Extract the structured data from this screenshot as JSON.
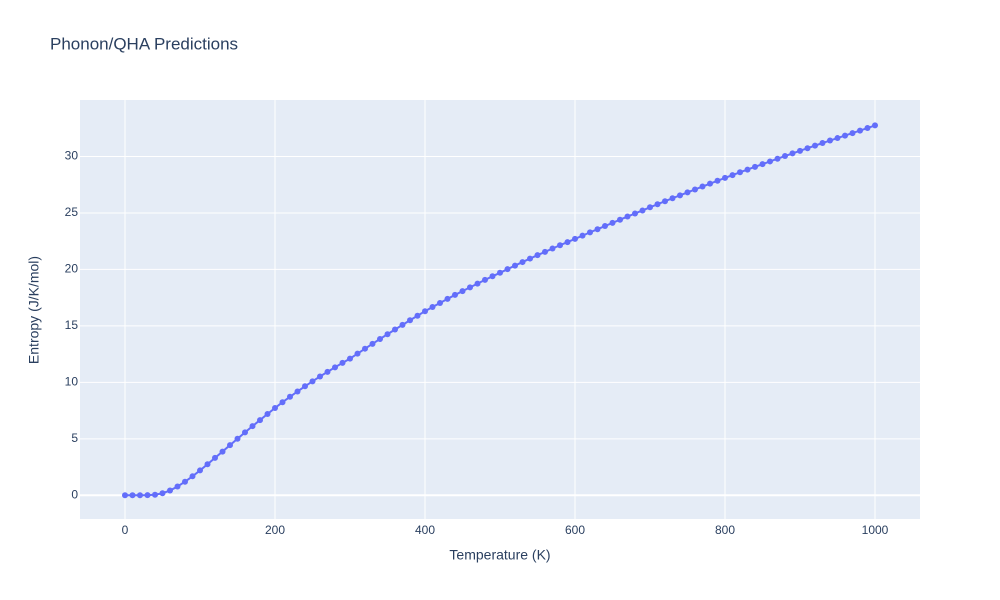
{
  "chart_data": {
    "type": "line",
    "title": "Phonon/QHA Predictions",
    "x_label": "Temperature (K)",
    "y_label": "Entropy (J/K/mol)",
    "x": [
      0,
      10,
      20,
      30,
      40,
      50,
      60,
      70,
      80,
      90,
      100,
      110,
      120,
      130,
      140,
      150,
      160,
      170,
      180,
      190,
      200,
      210,
      220,
      230,
      240,
      250,
      260,
      270,
      280,
      290,
      300,
      310,
      320,
      330,
      340,
      350,
      360,
      370,
      380,
      390,
      400,
      410,
      420,
      430,
      440,
      450,
      460,
      470,
      480,
      490,
      500,
      510,
      520,
      530,
      540,
      550,
      560,
      570,
      580,
      590,
      600,
      610,
      620,
      630,
      640,
      650,
      660,
      670,
      680,
      690,
      700,
      710,
      720,
      730,
      740,
      750,
      760,
      770,
      780,
      790,
      800,
      810,
      820,
      830,
      840,
      850,
      860,
      870,
      880,
      890,
      900,
      910,
      920,
      930,
      940,
      950,
      960,
      970,
      980,
      990,
      1000
    ],
    "series": [
      {
        "color": "#636efa",
        "values": [
          0,
          0,
          0,
          0.01,
          0.05,
          0.18,
          0.42,
          0.78,
          1.2,
          1.68,
          2.2,
          2.75,
          3.31,
          3.87,
          4.44,
          5.01,
          5.57,
          6.12,
          6.66,
          7.2,
          7.73,
          8.24,
          8.72,
          9.19,
          9.65,
          10.09,
          10.52,
          10.93,
          11.33,
          11.72,
          12.1,
          12.54,
          12.98,
          13.41,
          13.84,
          14.26,
          14.68,
          15.09,
          15.5,
          15.9,
          16.3,
          16.67,
          17.03,
          17.39,
          17.74,
          18.08,
          18.41,
          18.74,
          19.07,
          19.39,
          19.7,
          20.02,
          20.34,
          20.65,
          20.96,
          21.26,
          21.55,
          21.85,
          22.14,
          22.42,
          22.7,
          22.99,
          23.28,
          23.56,
          23.84,
          24.12,
          24.4,
          24.68,
          24.95,
          25.22,
          25.5,
          25.77,
          26.04,
          26.3,
          26.56,
          26.82,
          27.08,
          27.34,
          27.59,
          27.85,
          28.1,
          28.35,
          28.6,
          28.84,
          29.08,
          29.32,
          29.56,
          29.8,
          30.04,
          30.27,
          30.5,
          30.73,
          30.96,
          31.19,
          31.41,
          31.63,
          31.85,
          32.07,
          32.29,
          32.52,
          32.75
        ]
      }
    ],
    "xlim": [
      -60,
      1060
    ],
    "ylim": [
      -2.1,
      35
    ],
    "xticks": [
      0,
      200,
      400,
      600,
      800,
      1000
    ],
    "yticks": [
      0,
      5,
      10,
      15,
      20,
      25,
      30
    ],
    "grid": true,
    "markers": true
  }
}
